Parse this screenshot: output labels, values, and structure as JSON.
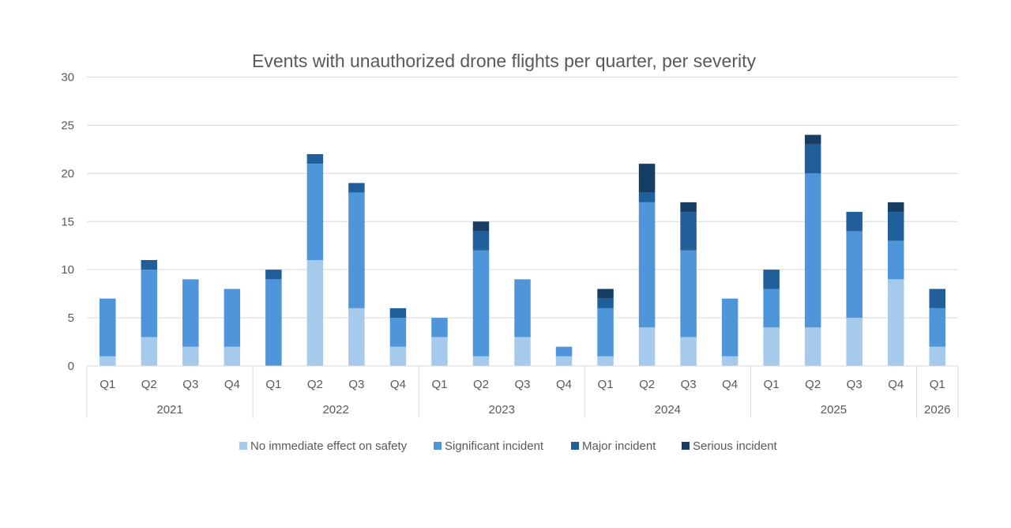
{
  "chart_data": {
    "type": "bar",
    "stacked": true,
    "title": "Events with unauthorized drone flights per quarter, per severity",
    "xlabel": "",
    "ylabel": "",
    "ylim": [
      0,
      30
    ],
    "yticks": [
      0,
      5,
      10,
      15,
      20,
      25,
      30
    ],
    "grid": true,
    "legend_position": "bottom",
    "categories": [
      {
        "quarter": "Q1",
        "year": "2021"
      },
      {
        "quarter": "Q2",
        "year": "2021"
      },
      {
        "quarter": "Q3",
        "year": "2021"
      },
      {
        "quarter": "Q4",
        "year": "2021"
      },
      {
        "quarter": "Q1",
        "year": "2022"
      },
      {
        "quarter": "Q2",
        "year": "2022"
      },
      {
        "quarter": "Q3",
        "year": "2022"
      },
      {
        "quarter": "Q4",
        "year": "2022"
      },
      {
        "quarter": "Q1",
        "year": "2023"
      },
      {
        "quarter": "Q2",
        "year": "2023"
      },
      {
        "quarter": "Q3",
        "year": "2023"
      },
      {
        "quarter": "Q4",
        "year": "2023"
      },
      {
        "quarter": "Q1",
        "year": "2024"
      },
      {
        "quarter": "Q2",
        "year": "2024"
      },
      {
        "quarter": "Q3",
        "year": "2024"
      },
      {
        "quarter": "Q4",
        "year": "2024"
      },
      {
        "quarter": "Q1",
        "year": "2025"
      },
      {
        "quarter": "Q2",
        "year": "2025"
      },
      {
        "quarter": "Q3",
        "year": "2025"
      },
      {
        "quarter": "Q4",
        "year": "2025"
      },
      {
        "quarter": "Q1",
        "year": "2026"
      }
    ],
    "years": [
      "2021",
      "2022",
      "2023",
      "2024",
      "2025",
      "2026"
    ],
    "series": [
      {
        "name": "No immediate effect on safety",
        "color": "#a6caec",
        "values": [
          1,
          3,
          2,
          2,
          0,
          11,
          6,
          2,
          3,
          1,
          3,
          1,
          1,
          4,
          3,
          1,
          4,
          4,
          5,
          9,
          2
        ]
      },
      {
        "name": "Significant incident",
        "color": "#4e95d9",
        "values": [
          6,
          7,
          7,
          6,
          9,
          10,
          12,
          3,
          2,
          11,
          6,
          1,
          5,
          13,
          9,
          6,
          4,
          16,
          9,
          4,
          4
        ]
      },
      {
        "name": "Major incident",
        "color": "#215f9a",
        "values": [
          0,
          1,
          0,
          0,
          1,
          1,
          1,
          1,
          0,
          2,
          0,
          0,
          1,
          1,
          4,
          0,
          2,
          3,
          2,
          3,
          2
        ]
      },
      {
        "name": "Serious incident",
        "color": "#163e64",
        "values": [
          0,
          0,
          0,
          0,
          0,
          0,
          0,
          0,
          0,
          1,
          0,
          0,
          1,
          3,
          1,
          0,
          0,
          1,
          0,
          1,
          0
        ]
      }
    ]
  }
}
